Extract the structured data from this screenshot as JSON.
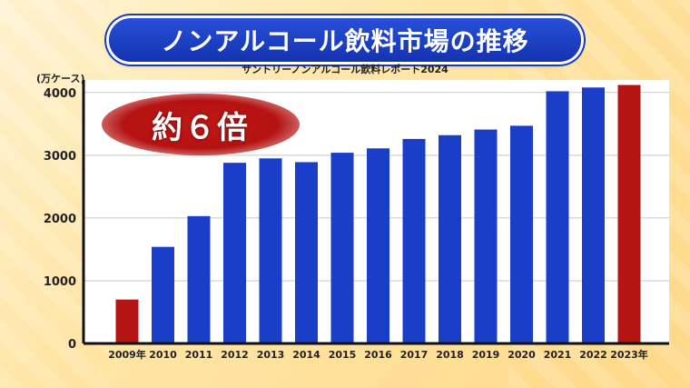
{
  "header": {
    "title": "ノンアルコール飲料市場の推移",
    "source": "サントリーノンアルコール飲料レポート2024"
  },
  "callout": {
    "text": "約６倍"
  },
  "colors": {
    "bar_default": "#1a3ec8",
    "bar_highlight": "#b51414",
    "banner": "#1a3bbf"
  },
  "chart_data": {
    "type": "bar",
    "unit_label": "(万ケース)",
    "categories": [
      "2009年",
      "2010",
      "2011",
      "2012",
      "2013",
      "2014",
      "2015",
      "2016",
      "2017",
      "2018",
      "2019",
      "2020",
      "2021",
      "2022",
      "2023年"
    ],
    "values": [
      700,
      1540,
      2030,
      2880,
      2950,
      2890,
      3040,
      3110,
      3260,
      3320,
      3410,
      3470,
      4020,
      4080,
      4120
    ],
    "highlight": [
      "2009年",
      "2023年"
    ],
    "yticks": [
      0,
      1000,
      2000,
      3000,
      4000
    ],
    "ylim": [
      0,
      4200
    ],
    "grid": true
  }
}
